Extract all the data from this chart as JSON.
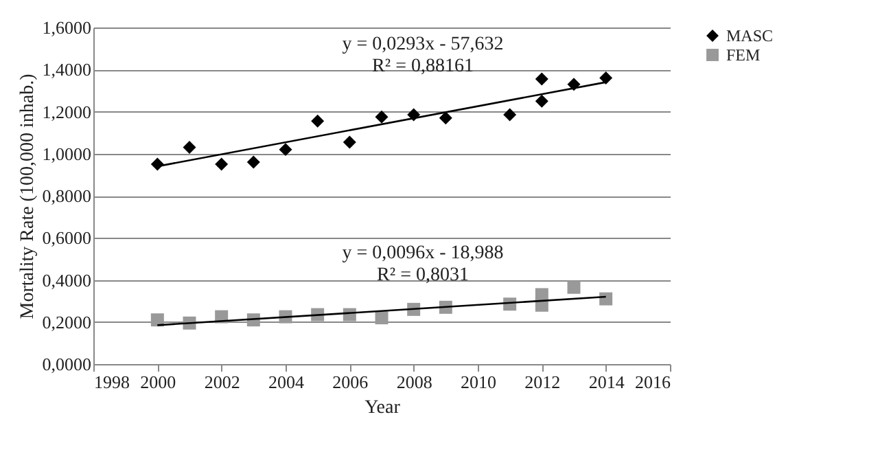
{
  "chart_data": {
    "type": "scatter",
    "xlabel": "Year",
    "ylabel": "Mortality Rate (100,000 inhab.)",
    "xlim": [
      1998,
      2016
    ],
    "xticks": [
      1998,
      2000,
      2002,
      2004,
      2006,
      2008,
      2010,
      2012,
      2014,
      2016
    ],
    "ylim": [
      0,
      1.6
    ],
    "yticks": [
      {
        "value": 0,
        "label": "0,0000"
      },
      {
        "value": 0.2,
        "label": "0,2000"
      },
      {
        "value": 0.4,
        "label": "0,4000"
      },
      {
        "value": 0.6,
        "label": "0,6000"
      },
      {
        "value": 0.8,
        "label": "0,8000"
      },
      {
        "value": 1.0,
        "label": "1,0000"
      },
      {
        "value": 1.2,
        "label": "1,2000"
      },
      {
        "value": 1.4,
        "label": "1,4000"
      },
      {
        "value": 1.6,
        "label": "1,6000"
      }
    ],
    "grid": "y",
    "legend": "right",
    "series": [
      {
        "name": "MASC",
        "marker": "diamond",
        "color": "#000000",
        "x": [
          2000,
          2001,
          2002,
          2003,
          2004,
          2005,
          2006,
          2007,
          2008,
          2009,
          2011,
          2012,
          2012,
          2013,
          2014
        ],
        "values": [
          0.95,
          1.03,
          0.95,
          0.96,
          1.02,
          1.155,
          1.055,
          1.175,
          1.185,
          1.17,
          1.185,
          1.25,
          1.355,
          1.33,
          1.36
        ]
      },
      {
        "name": "FEM",
        "marker": "square",
        "color": "#999999",
        "x": [
          2000,
          2001,
          2002,
          2003,
          2004,
          2005,
          2006,
          2007,
          2008,
          2009,
          2011,
          2012,
          2012,
          2013,
          2014
        ],
        "values": [
          0.21,
          0.195,
          0.225,
          0.21,
          0.225,
          0.235,
          0.235,
          0.22,
          0.26,
          0.27,
          0.285,
          0.28,
          0.33,
          0.365,
          0.31
        ]
      },
      {
        "type": "line",
        "color": "#000000",
        "x": [
          2000,
          2014
        ],
        "values": [
          0.94,
          1.34
        ]
      },
      {
        "type": "line",
        "color": "#000000",
        "x": [
          2000,
          2014
        ],
        "values": [
          0.185,
          0.32
        ]
      }
    ],
    "annotations": [
      "y = 0,0293x - 57,632",
      "R² = 0,88161",
      "y = 0,0096x - 18,988",
      "R² = 0,8031"
    ]
  }
}
